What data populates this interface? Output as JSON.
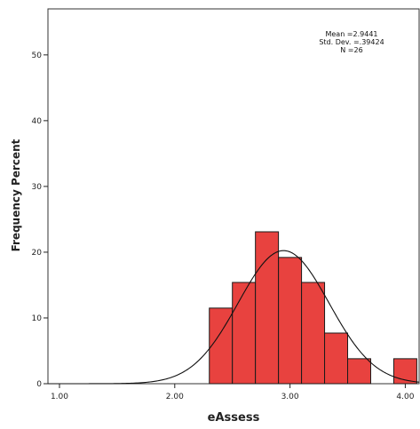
{
  "chart_data": {
    "type": "bar",
    "variant": "histogram with normal curve",
    "title": "",
    "xlabel": "eAssess",
    "ylabel": "Frequency Percent",
    "xlim": [
      0.9,
      4.12
    ],
    "ylim": [
      0,
      57
    ],
    "x_ticks": [
      "1.00",
      "2.00",
      "3.00",
      "4.00"
    ],
    "y_ticks": [
      "0",
      "10",
      "20",
      "30",
      "40",
      "50"
    ],
    "bin_width": 0.2,
    "bins": [
      {
        "start": 2.3,
        "end": 2.5,
        "value": 11.5
      },
      {
        "start": 2.5,
        "end": 2.7,
        "value": 15.4
      },
      {
        "start": 2.7,
        "end": 2.9,
        "value": 23.1
      },
      {
        "start": 2.9,
        "end": 3.1,
        "value": 19.2
      },
      {
        "start": 3.1,
        "end": 3.3,
        "value": 15.4
      },
      {
        "start": 3.3,
        "end": 3.5,
        "value": 7.7
      },
      {
        "start": 3.5,
        "end": 3.7,
        "value": 3.8
      },
      {
        "start": 3.9,
        "end": 4.1,
        "value": 3.8
      }
    ],
    "normal_curve": {
      "mean": 2.9441,
      "sd": 0.39424,
      "n": 26
    },
    "stats_text": [
      "Mean =2.9441",
      "Std. Dev. =.39424",
      "N =26"
    ],
    "grid": false,
    "colors": {
      "bar": "#e8423f",
      "bar_stroke": "#1a1a1a",
      "curve": "#111111",
      "axis": "#222222"
    }
  }
}
